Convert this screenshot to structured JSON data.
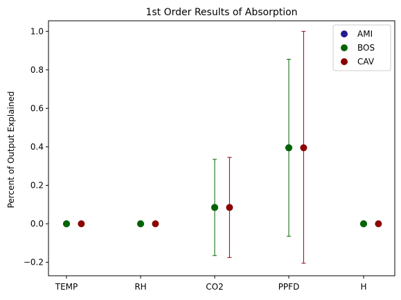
{
  "chart_data": {
    "type": "scatter",
    "title": "1st Order Results of Absorption",
    "xlabel": "",
    "ylabel": "Percent of Output Explained",
    "categories": [
      "TEMP",
      "RH",
      "CO2",
      "PPFD",
      "H"
    ],
    "ylim": [
      -0.27,
      1.055
    ],
    "yticks": [
      -0.2,
      0.0,
      0.2,
      0.4,
      0.6,
      0.8,
      1.0
    ],
    "ytick_labels": [
      "−0.2",
      "0.0",
      "0.2",
      "0.4",
      "0.6",
      "0.8",
      "1.0"
    ],
    "grid": false,
    "legend_position": "top-right",
    "series": [
      {
        "name": "AMI",
        "color": "#221a8f",
        "offset": 0.0,
        "values": [
          0.0,
          0.0,
          0.085,
          0.395,
          0.0
        ],
        "err_low": [
          null,
          null,
          null,
          null,
          null
        ],
        "err_high": [
          null,
          null,
          null,
          null,
          null
        ]
      },
      {
        "name": "BOS",
        "color": "#006400",
        "offset": 0.0,
        "values": [
          0.0,
          0.0,
          0.085,
          0.395,
          0.0
        ],
        "err_low": [
          null,
          null,
          -0.165,
          -0.065,
          null
        ],
        "err_high": [
          null,
          null,
          0.335,
          0.855,
          null
        ]
      },
      {
        "name": "CAV",
        "color": "#8b0000",
        "offset": 0.2,
        "values": [
          0.0,
          0.0,
          0.085,
          0.395,
          0.0
        ],
        "err_low": [
          null,
          null,
          -0.175,
          -0.205,
          null
        ],
        "err_high": [
          null,
          null,
          0.345,
          1.0,
          null
        ]
      }
    ]
  }
}
